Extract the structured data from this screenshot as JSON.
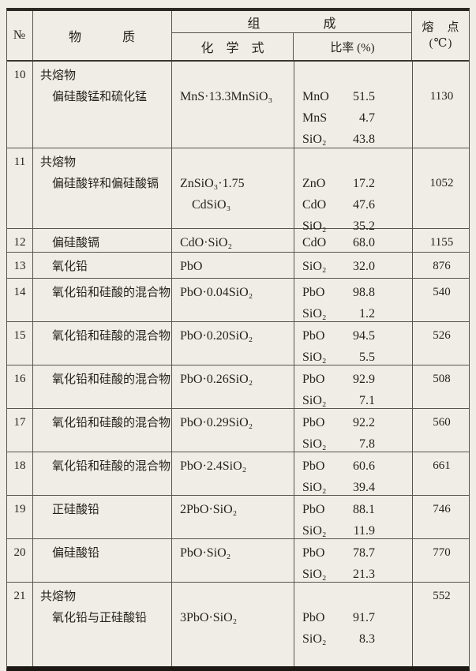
{
  "table": {
    "header": {
      "no": "№",
      "substance": "物　　　质",
      "composition": "组　　　　　成",
      "formula": "化　学　式",
      "ratio": "比率 (%)",
      "melting_point_line1": "熔　点",
      "melting_point_line2": "(℃)"
    },
    "rows": [
      {
        "no": "10",
        "substance_lines": [
          "共熔物",
          "偏硅酸锰和硫化锰"
        ],
        "formula_lines": [
          "MnS·13.3MnSiO₃"
        ],
        "ratios": [
          {
            "c": "MnO",
            "v": "51.5"
          },
          {
            "c": "MnS",
            "v": "4.7"
          },
          {
            "c": "SiO₂",
            "v": "43.8"
          }
        ],
        "melting_point": "1130"
      },
      {
        "no": "11",
        "substance_lines": [
          "共熔物",
          "偏硅酸锌和偏硅酸镉"
        ],
        "formula_lines": [
          "ZnSiO₃·1.75",
          "CdSiO₃"
        ],
        "ratios": [
          {
            "c": "ZnO",
            "v": "17.2"
          },
          {
            "c": "CdO",
            "v": "47.6"
          },
          {
            "c": "SiO₂",
            "v": "35.2"
          }
        ],
        "melting_point": "1052"
      },
      {
        "no": "12",
        "substance_lines": [
          "偏硅酸镉"
        ],
        "formula_lines": [
          "CdO·SiO₂"
        ],
        "ratios": [
          {
            "c": "CdO",
            "v": "68.0"
          }
        ],
        "melting_point": "1155"
      },
      {
        "no": "13",
        "substance_lines": [
          "氧化铅"
        ],
        "formula_lines": [
          "PbO"
        ],
        "ratios": [
          {
            "c": "SiO₂",
            "v": "32.0"
          }
        ],
        "melting_point": "876"
      },
      {
        "no": "14",
        "substance_lines": [
          "氧化铅和硅酸的混合物"
        ],
        "formula_lines": [
          "PbO·0.04SiO₂"
        ],
        "ratios": [
          {
            "c": "PbO",
            "v": "98.8"
          },
          {
            "c": "SiO₂",
            "v": "1.2"
          }
        ],
        "melting_point": "540"
      },
      {
        "no": "15",
        "substance_lines": [
          "氧化铅和硅酸的混合物"
        ],
        "formula_lines": [
          "PbO·0.20SiO₂"
        ],
        "ratios": [
          {
            "c": "PbO",
            "v": "94.5"
          },
          {
            "c": "SiO₂",
            "v": "5.5"
          }
        ],
        "melting_point": "526"
      },
      {
        "no": "16",
        "substance_lines": [
          "氧化铅和硅酸的混合物"
        ],
        "formula_lines": [
          "PbO·0.26SiO₂"
        ],
        "ratios": [
          {
            "c": "PbO",
            "v": "92.9"
          },
          {
            "c": "SiO₂",
            "v": "7.1"
          }
        ],
        "melting_point": "508"
      },
      {
        "no": "17",
        "substance_lines": [
          "氧化铅和硅酸的混合物"
        ],
        "formula_lines": [
          "PbO·0.29SiO₂"
        ],
        "ratios": [
          {
            "c": "PbO",
            "v": "92.2"
          },
          {
            "c": "SiO₂",
            "v": "7.8"
          }
        ],
        "melting_point": "560"
      },
      {
        "no": "18",
        "substance_lines": [
          "氧化铅和硅酸的混合物"
        ],
        "formula_lines": [
          "PbO·2.4SiO₂"
        ],
        "ratios": [
          {
            "c": "PbO",
            "v": "60.6"
          },
          {
            "c": "SiO₂",
            "v": "39.4"
          }
        ],
        "melting_point": "661"
      },
      {
        "no": "19",
        "substance_lines": [
          "正硅酸铅"
        ],
        "formula_lines": [
          "2PbO·SiO₂"
        ],
        "ratios": [
          {
            "c": "PbO",
            "v": "88.1"
          },
          {
            "c": "SiO₂",
            "v": "11.9"
          }
        ],
        "melting_point": "746"
      },
      {
        "no": "20",
        "substance_lines": [
          "偏硅酸铅"
        ],
        "formula_lines": [
          "PbO·SiO₂"
        ],
        "ratios": [
          {
            "c": "PbO",
            "v": "78.7"
          },
          {
            "c": "SiO₂",
            "v": "21.3"
          }
        ],
        "melting_point": "770"
      },
      {
        "no": "21",
        "substance_lines": [
          "共熔物",
          "氧化铅与正硅酸铅"
        ],
        "formula_lines": [
          "3PbO·SiO₂"
        ],
        "ratios": [
          {
            "c": "PbO",
            "v": "91.7"
          },
          {
            "c": "SiO₂",
            "v": "8.3"
          }
        ],
        "melting_point": "552"
      }
    ]
  }
}
